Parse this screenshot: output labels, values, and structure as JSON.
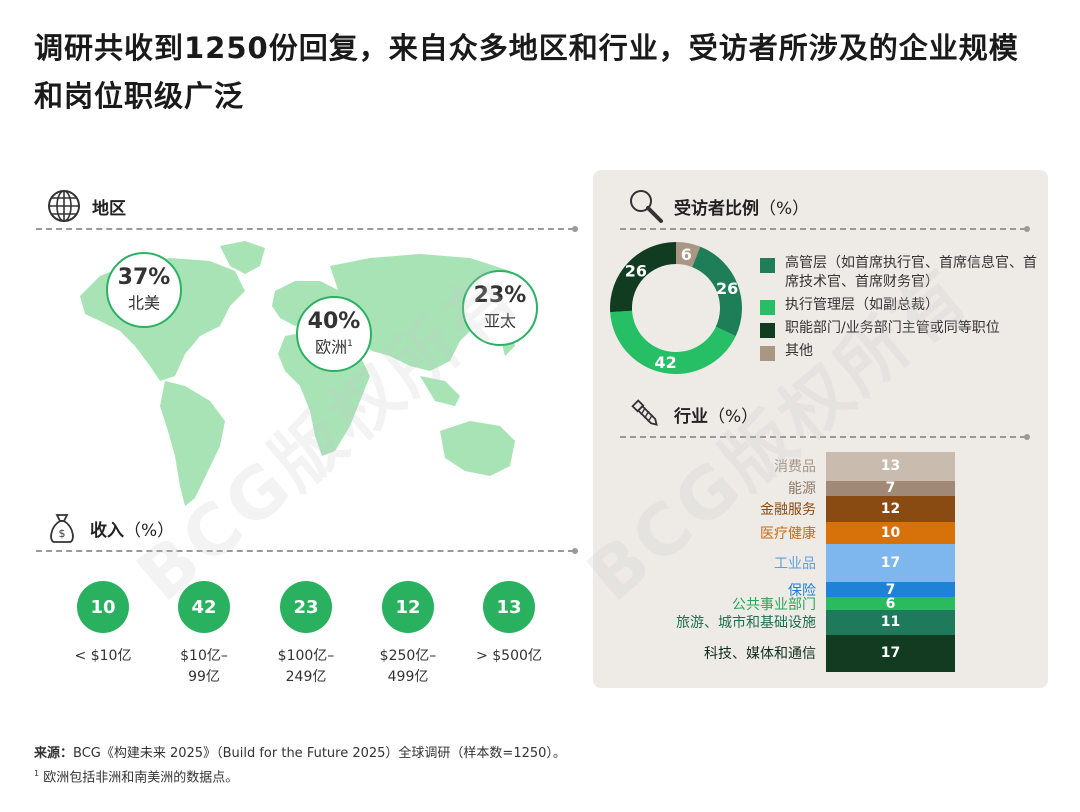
{
  "title": "调研共收到1250份回复，来自众多地区和行业，受访者所涉及的企业规模和岗位职级广泛",
  "region": {
    "heading": "地区",
    "bubbles": [
      {
        "pct": "37%",
        "name": "北美",
        "sup": ""
      },
      {
        "pct": "40%",
        "name": "欧洲",
        "sup": "1"
      },
      {
        "pct": "23%",
        "name": "亚太",
        "sup": ""
      }
    ]
  },
  "income": {
    "heading": "收入",
    "unit": "（%）"
  },
  "respondents": {
    "heading": "受访者比例",
    "unit": "（%）"
  },
  "industry": {
    "heading": "行业",
    "unit": "（%）"
  },
  "chart_data": [
    {
      "type": "bar",
      "title": "收入（%）",
      "categories": [
        "< $10亿",
        "$10亿–99亿",
        "$100亿–249亿",
        "$250亿–499亿",
        "> $500亿"
      ],
      "category_lines": [
        [
          "< $10亿"
        ],
        [
          "$10亿–",
          "99亿"
        ],
        [
          "$100亿–",
          "249亿"
        ],
        [
          "$250亿–",
          "499亿"
        ],
        [
          "> $500亿"
        ]
      ],
      "values": [
        10,
        42,
        23,
        12,
        13
      ],
      "color": "#29b15f"
    },
    {
      "type": "pie",
      "title": "受访者比例（%）",
      "categories": [
        "高管层（如首席执行官、首席信息官、首席技术官、首席财务官）",
        "执行管理层（如副总裁）",
        "职能部门/业务部门主管或同等职位",
        "其他"
      ],
      "values": [
        26,
        42,
        26,
        6
      ],
      "colors": [
        "#1e7e57",
        "#27bf66",
        "#123c21",
        "#a99683"
      ]
    },
    {
      "type": "bar",
      "title": "行业（%）",
      "categories": [
        "消费品",
        "能源",
        "金融服务",
        "医疗健康",
        "工业品",
        "保险",
        "公共事业部门",
        "旅游、城市和基础设施",
        "科技、媒体和通信"
      ],
      "values": [
        13,
        7,
        12,
        10,
        17,
        7,
        6,
        11,
        17
      ],
      "colors": [
        "#c9bbae",
        "#a08a77",
        "#8a4b12",
        "#d7720b",
        "#7eb6ee",
        "#1e82d6",
        "#2bbb5f",
        "#1e7a5a",
        "#133b22"
      ],
      "label_colors": [
        "#a59787",
        "#8c7a67",
        "#8a4b12",
        "#cc6b0a",
        "#5b9fe0",
        "#1e7dcf",
        "#24a856",
        "#1e6f50",
        "#102e1b"
      ]
    }
  ],
  "footer": {
    "source_label": "来源：",
    "source_text": "BCG《构建未来 2025》（Build for the Future 2025）全球调研（样本数=1250）。",
    "note_mark": "1",
    "note_text": "欧洲包括非洲和南美洲的数据点。"
  },
  "watermark": "BCG版权所有",
  "colors": {
    "accent": "#29b15f",
    "panel": "#eeebe7",
    "map": "#a7e3b5"
  }
}
